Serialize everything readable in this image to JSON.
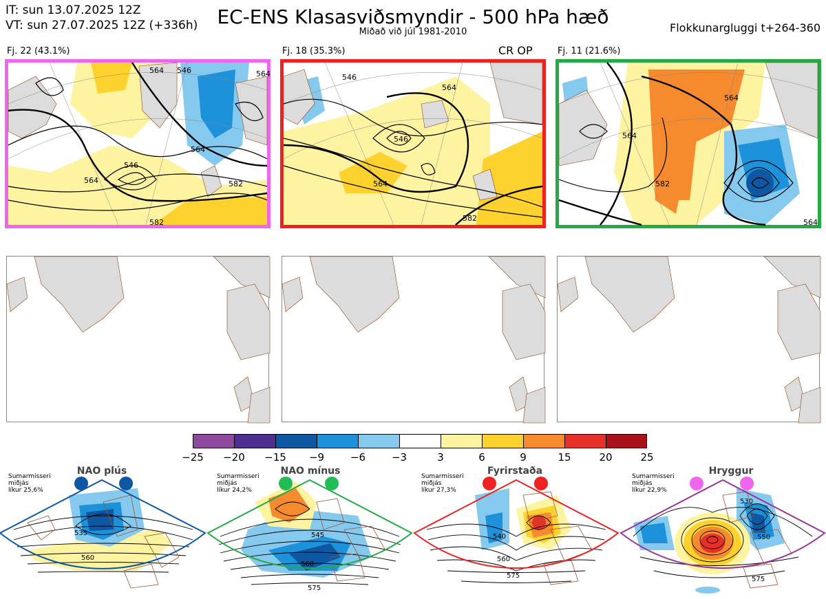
{
  "header": {
    "it_line": "IT: sun 13.07.2025 12Z",
    "vt_line": "VT: sun 27.07.2025 12Z  (+336h)",
    "title": "EC-ENS Klasasviðsmyndir - 500 hPa hæð",
    "subtitle": "Miðað við júl 1981-2010",
    "window": "Flokkunargluggi t+264-360"
  },
  "clusters": [
    {
      "label": "Fj. 22 (43.1%)",
      "border_color": "#ee66ee",
      "badge": ""
    },
    {
      "label": "Fj. 18 (35.3%)",
      "border_color": "#ee2222",
      "badge": "CR OP"
    },
    {
      "label": "Fj. 11 (21.6%)",
      "border_color": "#22aa44",
      "badge": ""
    }
  ],
  "contour_labels": {
    "p1": [
      "546",
      "564",
      "546",
      "564",
      "564",
      "582",
      "564",
      "582"
    ],
    "p2": [
      "546",
      "564",
      "546",
      "564",
      "582"
    ],
    "p3": [
      "564",
      "564",
      "582",
      "564"
    ]
  },
  "colorbar": {
    "ticks": [
      "−25",
      "−20",
      "−15",
      "−9",
      "−6",
      "−3",
      "3",
      "6",
      "9",
      "15",
      "20",
      "25"
    ],
    "colors": [
      "#8d4a9e",
      "#4c2f91",
      "#0d57a3",
      "#1d91d9",
      "#86c9ef",
      "#ffffff",
      "#fdf3a1",
      "#fdd22e",
      "#f68a2e",
      "#e8302b",
      "#a8101a"
    ]
  },
  "regimes": [
    {
      "name": "NAO plús",
      "info": [
        "Sumarmisseri",
        "miðjás",
        "líkur 25,6%"
      ],
      "color": "#0d57a3",
      "dot_color": "#0d57a3",
      "contours": [
        "535",
        "560"
      ]
    },
    {
      "name": "NAO mínus",
      "info": [
        "Sumarmisseri",
        "miðjás",
        "líkur 24,2%"
      ],
      "color": "#22aa44",
      "dot_color": "#22bb55",
      "contours": [
        "545",
        "560",
        "575"
      ]
    },
    {
      "name": "Fyrirstaða",
      "info": [
        "Sumarmisseri",
        "miðjás",
        "líkur 27,3%"
      ],
      "color": "#ee2222",
      "dot_color": "#ee2222",
      "contours": [
        "540",
        "560",
        "575"
      ]
    },
    {
      "name": "Hryggur",
      "info": [
        "Sumarmisseri",
        "miðjás",
        "líkur 22,9%"
      ],
      "color": "#993399",
      "dot_color": "#ee66ee",
      "contours": [
        "530",
        "550",
        "575"
      ]
    }
  ]
}
